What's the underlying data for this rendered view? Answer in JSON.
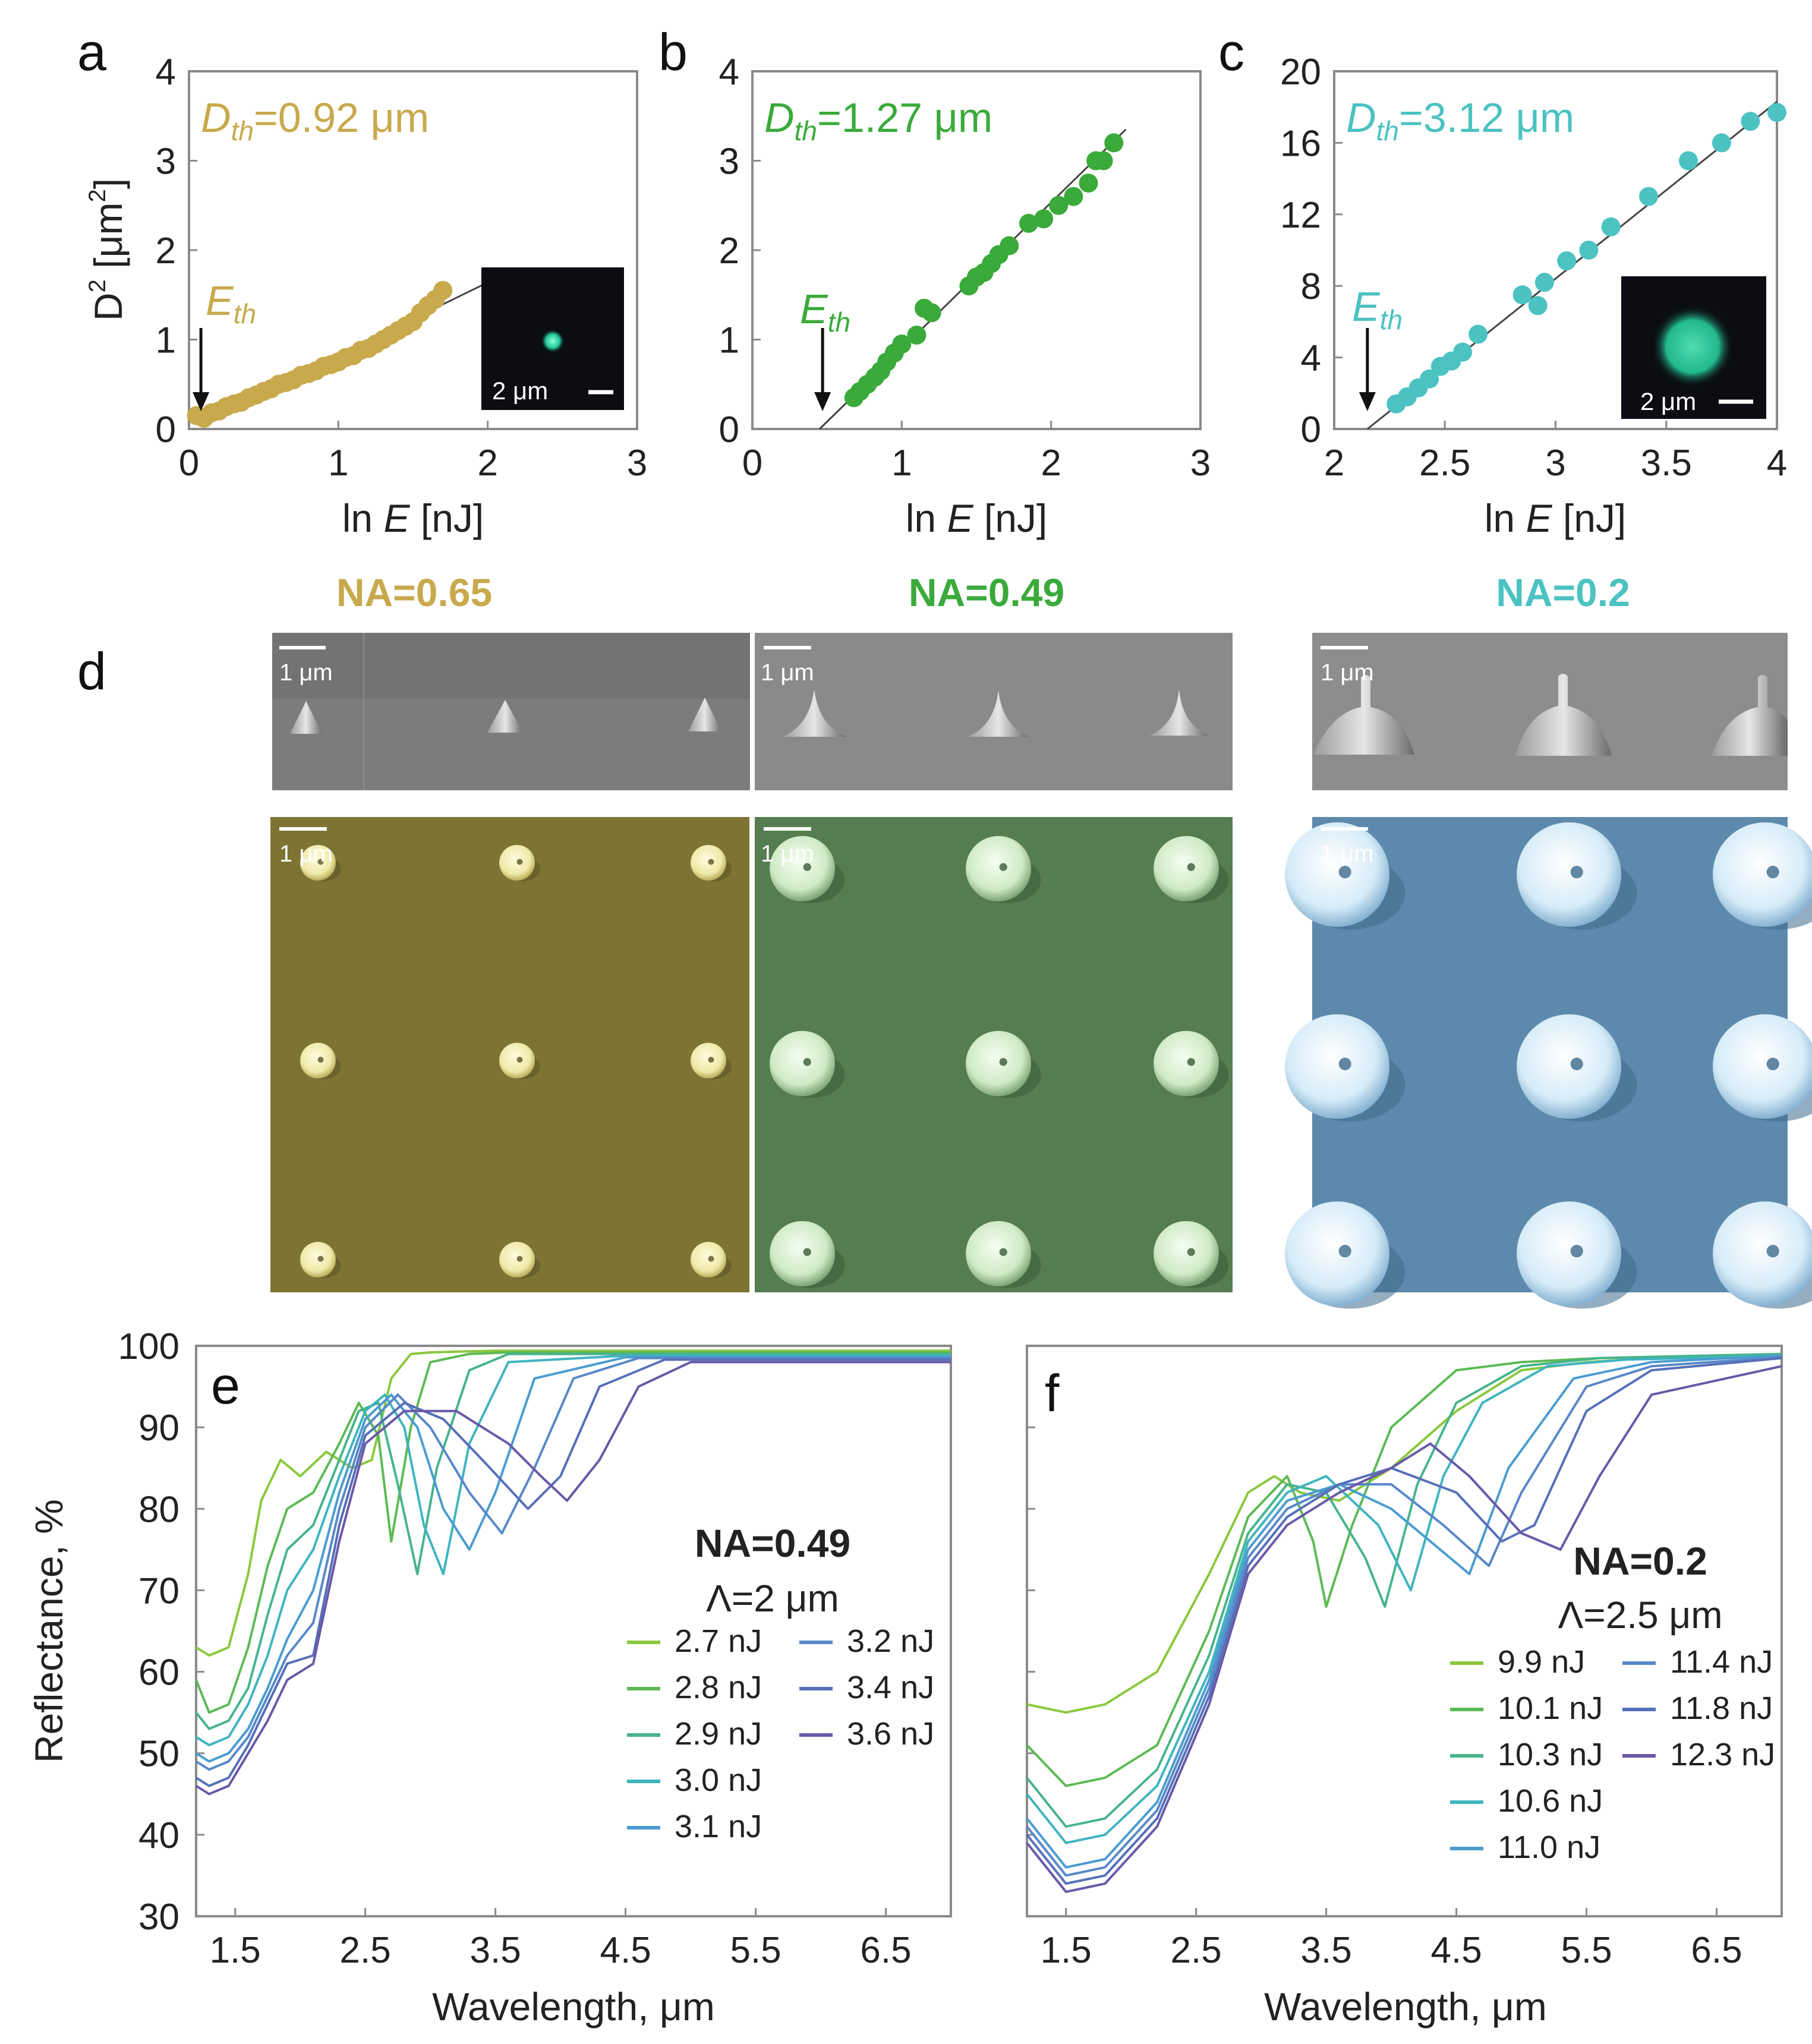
{
  "colors": {
    "gold": "#C8A94C",
    "green": "#3AAA3A",
    "teal": "#4CC2C2",
    "sem_gold": "#7d7434",
    "sem_green": "#567c52",
    "sem_blue": "#5d8aac"
  },
  "chart_data": [
    {
      "id": "a",
      "type": "scatter",
      "panel_label": "a",
      "xlabel": "ln E [nJ]",
      "ylabel": "D² [μm²]",
      "xlim": [
        0,
        3
      ],
      "ylim": [
        0,
        4
      ],
      "xticks": [
        "0",
        "1",
        "2",
        "3"
      ],
      "yticks": [
        "0",
        "1",
        "2",
        "3",
        "4"
      ],
      "annotation": "Dth=0.92 μm",
      "arrow_label": "Eth",
      "threshold_x": 0.08,
      "fit_line": {
        "x": [
          0.05,
          2.1
        ],
        "y": [
          0.05,
          1.72
        ]
      },
      "x": [
        0.05,
        0.1,
        0.15,
        0.2,
        0.25,
        0.3,
        0.35,
        0.4,
        0.45,
        0.5,
        0.55,
        0.6,
        0.65,
        0.7,
        0.75,
        0.8,
        0.85,
        0.9,
        0.95,
        1.0,
        1.05,
        1.1,
        1.15,
        1.2,
        1.25,
        1.3,
        1.35,
        1.4,
        1.45,
        1.5,
        1.55,
        1.6,
        1.65,
        1.7
      ],
      "y": [
        0.15,
        0.12,
        0.18,
        0.2,
        0.25,
        0.28,
        0.3,
        0.35,
        0.38,
        0.42,
        0.45,
        0.5,
        0.52,
        0.55,
        0.6,
        0.62,
        0.65,
        0.7,
        0.72,
        0.75,
        0.8,
        0.82,
        0.88,
        0.9,
        0.95,
        1.0,
        1.05,
        1.1,
        1.15,
        1.2,
        1.3,
        1.38,
        1.45,
        1.55
      ],
      "inset_scale_label": "2 μm"
    },
    {
      "id": "b",
      "type": "scatter",
      "panel_label": "b",
      "xlabel": "ln E [nJ]",
      "ylabel": "",
      "xlim": [
        0,
        3
      ],
      "ylim": [
        0,
        4
      ],
      "xticks": [
        "0",
        "1",
        "2",
        "3"
      ],
      "yticks": [
        "0",
        "1",
        "2",
        "3",
        "4"
      ],
      "annotation": "Dth=1.27 μm",
      "arrow_label": "Eth",
      "threshold_x": 0.47,
      "fit_line": {
        "x": [
          0.45,
          2.5
        ],
        "y": [
          0.0,
          3.35
        ]
      },
      "x": [
        0.68,
        0.72,
        0.77,
        0.82,
        0.86,
        0.9,
        0.95,
        1.0,
        1.1,
        1.15,
        1.2,
        1.45,
        1.5,
        1.55,
        1.6,
        1.65,
        1.72,
        1.85,
        1.95,
        2.05,
        2.15,
        2.25,
        2.3,
        2.35,
        2.42
      ],
      "y": [
        0.35,
        0.42,
        0.5,
        0.58,
        0.65,
        0.75,
        0.85,
        0.95,
        1.05,
        1.35,
        1.3,
        1.6,
        1.7,
        1.75,
        1.85,
        1.95,
        2.05,
        2.3,
        2.35,
        2.5,
        2.6,
        2.75,
        3.0,
        3.0,
        3.2
      ],
      "inset_scale_label": ""
    },
    {
      "id": "c",
      "type": "scatter",
      "panel_label": "c",
      "xlabel": "ln E [nJ]",
      "ylabel": "",
      "xlim": [
        2,
        4
      ],
      "ylim": [
        0,
        20
      ],
      "xticks": [
        "2",
        "2.5",
        "3",
        "3.5",
        "4"
      ],
      "yticks": [
        "0",
        "4",
        "8",
        "12",
        "16",
        "20"
      ],
      "annotation": "Dth=3.12 μm",
      "arrow_label": "Eth",
      "threshold_x": 2.15,
      "fit_line": {
        "x": [
          2.15,
          4.0
        ],
        "y": [
          0.0,
          18.3
        ]
      },
      "x": [
        2.28,
        2.33,
        2.38,
        2.43,
        2.48,
        2.53,
        2.58,
        2.65,
        2.85,
        2.92,
        2.95,
        3.05,
        3.15,
        3.25,
        3.42,
        3.6,
        3.75,
        3.88,
        4.0
      ],
      "y": [
        1.4,
        1.8,
        2.3,
        2.8,
        3.5,
        3.8,
        4.3,
        5.3,
        7.5,
        6.9,
        8.2,
        9.4,
        10.0,
        11.3,
        13.0,
        15.0,
        16.0,
        17.2,
        17.7
      ],
      "inset_scale_label": "2 μm"
    },
    {
      "id": "e",
      "type": "line",
      "panel_label": "e",
      "xlabel": "Wavelength, μm",
      "ylabel": "Reflectance, %",
      "xlim": [
        1.2,
        7.0
      ],
      "ylim": [
        30,
        100
      ],
      "xticks": [
        "1.5",
        "2.5",
        "3.5",
        "4.5",
        "5.5",
        "6.5"
      ],
      "yticks": [
        "30",
        "40",
        "50",
        "60",
        "70",
        "80",
        "90",
        "100"
      ],
      "legend_title": "NA=0.49",
      "legend_subtitle": "Λ=2 μm",
      "legend_location": "center-right",
      "series": [
        {
          "name": "2.7 nJ",
          "color": "#8ac83c",
          "x": [
            1.2,
            1.3,
            1.45,
            1.6,
            1.7,
            1.85,
            2.0,
            2.2,
            2.4,
            2.55,
            2.7,
            2.85,
            3.0,
            3.5,
            4.0,
            5.0,
            7.0
          ],
          "y": [
            63,
            62,
            63,
            72,
            81,
            86,
            84,
            87,
            85,
            86,
            96,
            99,
            99.2,
            99.4,
            99.4,
            99.4,
            99.4
          ]
        },
        {
          "name": "2.8 nJ",
          "color": "#5cba54",
          "x": [
            1.2,
            1.3,
            1.45,
            1.6,
            1.75,
            1.9,
            2.1,
            2.3,
            2.45,
            2.6,
            2.7,
            2.85,
            3.0,
            3.3,
            3.6,
            4.5,
            7.0
          ],
          "y": [
            59,
            55,
            56,
            63,
            73,
            80,
            82,
            88,
            93,
            89,
            76,
            90,
            98,
            99,
            99.2,
            99.2,
            99.2
          ]
        },
        {
          "name": "2.9 nJ",
          "color": "#46b48a",
          "x": [
            1.2,
            1.3,
            1.45,
            1.6,
            1.75,
            1.9,
            2.1,
            2.3,
            2.45,
            2.6,
            2.75,
            2.9,
            3.05,
            3.3,
            3.6,
            4.5,
            7.0
          ],
          "y": [
            55,
            53,
            54,
            58,
            67,
            75,
            78,
            86,
            92,
            93,
            83,
            72,
            85,
            97,
            99,
            99,
            99
          ]
        },
        {
          "name": "3.0 nJ",
          "color": "#40b4c0",
          "x": [
            1.2,
            1.3,
            1.45,
            1.6,
            1.75,
            1.9,
            2.1,
            2.3,
            2.5,
            2.65,
            2.8,
            2.95,
            3.1,
            3.3,
            3.6,
            4.5,
            7.0
          ],
          "y": [
            52,
            51,
            52,
            56,
            62,
            70,
            75,
            84,
            92,
            94,
            90,
            78,
            72,
            88,
            98,
            98.8,
            98.8
          ]
        },
        {
          "name": "3.1 nJ",
          "color": "#4a9cd0",
          "x": [
            1.2,
            1.3,
            1.45,
            1.6,
            1.75,
            1.9,
            2.1,
            2.3,
            2.5,
            2.7,
            2.9,
            3.1,
            3.3,
            3.5,
            3.8,
            4.5,
            7.0
          ],
          "y": [
            50,
            49,
            50,
            53,
            58,
            64,
            70,
            82,
            91,
            94,
            90,
            80,
            75,
            82,
            96,
            98.6,
            98.6
          ]
        },
        {
          "name": "3.2 nJ",
          "color": "#5888c8",
          "x": [
            1.2,
            1.3,
            1.45,
            1.6,
            1.75,
            1.9,
            2.1,
            2.3,
            2.5,
            2.75,
            3.0,
            3.3,
            3.55,
            3.8,
            4.1,
            4.6,
            7.0
          ],
          "y": [
            49,
            48,
            49,
            52,
            57,
            62,
            66,
            80,
            90,
            94,
            90,
            82,
            77,
            85,
            96,
            98.5,
            98.5
          ]
        },
        {
          "name": "3.4 nJ",
          "color": "#5570b8",
          "x": [
            1.2,
            1.3,
            1.45,
            1.6,
            1.75,
            1.9,
            2.1,
            2.3,
            2.5,
            2.8,
            3.1,
            3.4,
            3.75,
            4.0,
            4.3,
            4.8,
            7.0
          ],
          "y": [
            47,
            46,
            47,
            51,
            56,
            61,
            62,
            78,
            89,
            93,
            91,
            86,
            80,
            84,
            95,
            98.3,
            98.3
          ]
        },
        {
          "name": "3.6 nJ",
          "color": "#6a58a8",
          "x": [
            1.2,
            1.3,
            1.45,
            1.6,
            1.75,
            1.9,
            2.1,
            2.3,
            2.5,
            2.8,
            3.2,
            3.6,
            3.85,
            4.05,
            4.3,
            4.6,
            5.0,
            7.0
          ],
          "y": [
            46,
            45,
            46,
            50,
            54,
            59,
            61,
            76,
            88,
            92,
            92,
            88,
            84,
            81,
            86,
            95,
            98,
            98
          ]
        }
      ]
    },
    {
      "id": "f",
      "type": "line",
      "panel_label": "f",
      "xlabel": "Wavelength, μm",
      "ylabel": "",
      "xlim": [
        1.2,
        7.0
      ],
      "ylim": [
        30,
        100
      ],
      "xticks": [
        "1.5",
        "2.5",
        "3.5",
        "4.5",
        "5.5",
        "6.5"
      ],
      "yticks": [],
      "legend_title": "NA=0.2",
      "legend_subtitle": "Λ=2.5 μm",
      "legend_location": "center-right",
      "series": [
        {
          "name": "9.9 nJ",
          "color": "#8ac83c",
          "x": [
            1.2,
            1.5,
            1.8,
            2.2,
            2.6,
            2.9,
            3.1,
            3.3,
            3.6,
            4.0,
            4.5,
            5.0,
            5.5,
            6.0,
            7.0
          ],
          "y": [
            56,
            55,
            56,
            60,
            72,
            82,
            84,
            82,
            81,
            85,
            92,
            97,
            98,
            98.5,
            99
          ]
        },
        {
          "name": "10.1 nJ",
          "color": "#5cba54",
          "x": [
            1.2,
            1.5,
            1.8,
            2.2,
            2.6,
            2.9,
            3.2,
            3.4,
            3.5,
            3.7,
            4.0,
            4.5,
            5.0,
            5.6,
            7.0
          ],
          "y": [
            51,
            46,
            47,
            51,
            65,
            79,
            84,
            76,
            68,
            78,
            90,
            97,
            98,
            98.5,
            99
          ]
        },
        {
          "name": "10.3 nJ",
          "color": "#46b48a",
          "x": [
            1.2,
            1.5,
            1.8,
            2.2,
            2.6,
            2.9,
            3.2,
            3.5,
            3.8,
            3.95,
            4.2,
            4.5,
            5.0,
            5.6,
            7.0
          ],
          "y": [
            47,
            41,
            42,
            48,
            62,
            77,
            83,
            82,
            74,
            68,
            83,
            93,
            97.5,
            98.5,
            99
          ]
        },
        {
          "name": "10.6 nJ",
          "color": "#40b4c0",
          "x": [
            1.2,
            1.5,
            1.8,
            2.2,
            2.6,
            2.9,
            3.2,
            3.5,
            3.9,
            4.15,
            4.4,
            4.7,
            5.2,
            5.8,
            7.0
          ],
          "y": [
            45,
            39,
            40,
            46,
            60,
            76,
            82,
            84,
            78,
            70,
            84,
            93,
            97.5,
            98.3,
            98.8
          ]
        },
        {
          "name": "11.0 nJ",
          "color": "#4a9cd0",
          "x": [
            1.2,
            1.5,
            1.8,
            2.2,
            2.6,
            2.9,
            3.2,
            3.6,
            4.0,
            4.3,
            4.6,
            4.9,
            5.4,
            6.0,
            7.0
          ],
          "y": [
            42,
            36,
            37,
            44,
            59,
            75,
            81,
            83,
            80,
            76,
            72,
            85,
            96,
            98,
            98.8
          ]
        },
        {
          "name": "11.4 nJ",
          "color": "#5888c8",
          "x": [
            1.2,
            1.5,
            1.8,
            2.2,
            2.6,
            2.9,
            3.2,
            3.6,
            4.0,
            4.4,
            4.75,
            5.0,
            5.5,
            6.0,
            7.0
          ],
          "y": [
            41,
            35,
            36,
            43,
            58,
            74,
            80,
            83,
            83,
            78,
            73,
            82,
            95,
            97.5,
            98.6
          ]
        },
        {
          "name": "11.8 nJ",
          "color": "#5570b8",
          "x": [
            1.2,
            1.5,
            1.8,
            2.2,
            2.6,
            2.9,
            3.2,
            3.6,
            4.0,
            4.5,
            4.85,
            5.1,
            5.5,
            6.0,
            7.0
          ],
          "y": [
            40,
            34,
            35,
            42,
            57,
            73,
            79,
            83,
            85,
            82,
            76,
            78,
            92,
            97,
            98.5
          ]
        },
        {
          "name": "12.3 nJ",
          "color": "#6a58a8",
          "x": [
            1.2,
            1.5,
            1.8,
            2.2,
            2.6,
            2.9,
            3.2,
            3.6,
            4.0,
            4.3,
            4.6,
            5.0,
            5.3,
            5.6,
            6.0,
            7.0
          ],
          "y": [
            39,
            33,
            34,
            41,
            56,
            72,
            78,
            82,
            85,
            88,
            84,
            77,
            75,
            84,
            94,
            97.5
          ]
        }
      ]
    }
  ],
  "sem": {
    "panel_label": "d",
    "columns": [
      {
        "label": "NA=0.65",
        "color": "#C8A94C",
        "scale_label": "1 μm"
      },
      {
        "label": "NA=0.49",
        "color": "#3AAA3A",
        "scale_label": "1 μm"
      },
      {
        "label": "NA=0.2",
        "color": "#4CC2C2",
        "scale_label": "1 μm"
      }
    ]
  }
}
